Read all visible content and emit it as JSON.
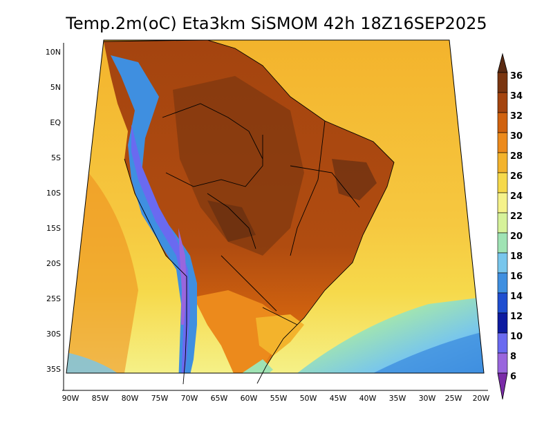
{
  "title": "Temp.2m(oC) Eta3km SiSMOM 42h 18Z16SEP2025",
  "latitude_labels": [
    "10N",
    "5N",
    "EQ",
    "5S",
    "10S",
    "15S",
    "20S",
    "25S",
    "30S",
    "35S"
  ],
  "longitude_labels": [
    "90W",
    "85W",
    "80W",
    "75W",
    "70W",
    "65W",
    "60W",
    "55W",
    "50W",
    "45W",
    "40W",
    "35W",
    "30W",
    "25W",
    "20W"
  ],
  "colorbar": {
    "labels": [
      "36",
      "34",
      "32",
      "30",
      "28",
      "26",
      "24",
      "22",
      "20",
      "18",
      "16",
      "14",
      "12",
      "10",
      "8",
      "6"
    ],
    "colors": [
      "#5a2a12",
      "#7a3510",
      "#a4440f",
      "#d0620f",
      "#ec8a1c",
      "#f3b32c",
      "#f6d94b",
      "#f5f28a",
      "#d6f29a",
      "#9fe3b4",
      "#78c6ec",
      "#3f8fe0",
      "#1f4ed0",
      "#0d1ba0",
      "#6a6af0",
      "#9966dd",
      "#7a2ba8"
    ]
  },
  "map_colors": {
    "ocean_north": "#f3b32c",
    "ocean_south": "#f6d94b",
    "continent_hot": "#a4440f",
    "continent_warm": "#d0620f",
    "andes_cold": "#3f8fe0",
    "andes_peak": "#6a6af0",
    "south_cool": "#78c6ec",
    "south_cold": "#3f8fe0"
  }
}
